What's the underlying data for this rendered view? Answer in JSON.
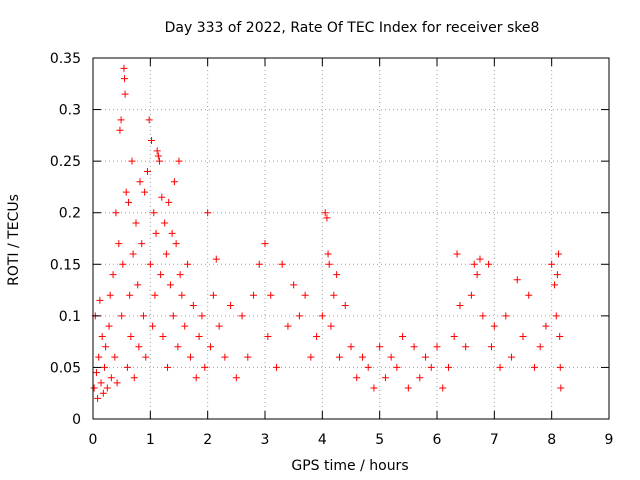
{
  "chart_data": {
    "type": "scatter",
    "title": "Day 333 of 2022, Rate Of TEC Index for receiver ske8",
    "xlabel": "GPS time / hours",
    "ylabel": "ROTI / TECUs",
    "xlim": [
      0,
      9
    ],
    "ylim": [
      0,
      0.35
    ],
    "xticks": [
      0,
      1,
      2,
      3,
      4,
      5,
      6,
      7,
      8,
      9
    ],
    "yticks": [
      0,
      0.05,
      0.1,
      0.15,
      0.2,
      0.25,
      0.3,
      0.35
    ],
    "xtick_labels": [
      "0",
      "1",
      "2",
      "3",
      "4",
      "5",
      "6",
      "7",
      "8",
      "9"
    ],
    "ytick_labels": [
      "0",
      "0.05",
      "0.1",
      "0.15",
      "0.2",
      "0.25",
      "0.3",
      "0.35"
    ],
    "grid": true,
    "marker": "+",
    "color": "#ff0000",
    "series": [
      {
        "name": "ROTI",
        "points": [
          [
            0.02,
            0.03
          ],
          [
            0.04,
            0.1
          ],
          [
            0.06,
            0.045
          ],
          [
            0.08,
            0.02
          ],
          [
            0.1,
            0.06
          ],
          [
            0.12,
            0.115
          ],
          [
            0.14,
            0.035
          ],
          [
            0.16,
            0.08
          ],
          [
            0.18,
            0.025
          ],
          [
            0.2,
            0.05
          ],
          [
            0.22,
            0.07
          ],
          [
            0.25,
            0.03
          ],
          [
            0.28,
            0.09
          ],
          [
            0.3,
            0.12
          ],
          [
            0.32,
            0.04
          ],
          [
            0.35,
            0.14
          ],
          [
            0.38,
            0.06
          ],
          [
            0.4,
            0.2
          ],
          [
            0.42,
            0.035
          ],
          [
            0.45,
            0.17
          ],
          [
            0.47,
            0.28
          ],
          [
            0.49,
            0.29
          ],
          [
            0.5,
            0.1
          ],
          [
            0.52,
            0.15
          ],
          [
            0.54,
            0.34
          ],
          [
            0.55,
            0.33
          ],
          [
            0.56,
            0.315
          ],
          [
            0.58,
            0.22
          ],
          [
            0.6,
            0.05
          ],
          [
            0.62,
            0.21
          ],
          [
            0.64,
            0.12
          ],
          [
            0.66,
            0.08
          ],
          [
            0.68,
            0.25
          ],
          [
            0.7,
            0.16
          ],
          [
            0.72,
            0.04
          ],
          [
            0.75,
            0.19
          ],
          [
            0.78,
            0.13
          ],
          [
            0.8,
            0.07
          ],
          [
            0.82,
            0.23
          ],
          [
            0.85,
            0.17
          ],
          [
            0.88,
            0.1
          ],
          [
            0.9,
            0.22
          ],
          [
            0.92,
            0.06
          ],
          [
            0.95,
            0.24
          ],
          [
            0.98,
            0.29
          ],
          [
            1.0,
            0.15
          ],
          [
            1.02,
            0.27
          ],
          [
            1.04,
            0.09
          ],
          [
            1.06,
            0.2
          ],
          [
            1.08,
            0.12
          ],
          [
            1.1,
            0.18
          ],
          [
            1.12,
            0.26
          ],
          [
            1.14,
            0.255
          ],
          [
            1.16,
            0.25
          ],
          [
            1.18,
            0.14
          ],
          [
            1.2,
            0.215
          ],
          [
            1.22,
            0.08
          ],
          [
            1.25,
            0.19
          ],
          [
            1.28,
            0.16
          ],
          [
            1.3,
            0.05
          ],
          [
            1.32,
            0.21
          ],
          [
            1.35,
            0.13
          ],
          [
            1.38,
            0.18
          ],
          [
            1.4,
            0.1
          ],
          [
            1.42,
            0.23
          ],
          [
            1.45,
            0.17
          ],
          [
            1.48,
            0.07
          ],
          [
            1.5,
            0.25
          ],
          [
            1.52,
            0.14
          ],
          [
            1.55,
            0.12
          ],
          [
            1.6,
            0.09
          ],
          [
            1.65,
            0.15
          ],
          [
            1.7,
            0.06
          ],
          [
            1.75,
            0.11
          ],
          [
            1.8,
            0.04
          ],
          [
            1.85,
            0.08
          ],
          [
            1.9,
            0.1
          ],
          [
            1.95,
            0.05
          ],
          [
            2.0,
            0.2
          ],
          [
            2.05,
            0.07
          ],
          [
            2.1,
            0.12
          ],
          [
            2.15,
            0.155
          ],
          [
            2.2,
            0.09
          ],
          [
            2.3,
            0.06
          ],
          [
            2.4,
            0.11
          ],
          [
            2.5,
            0.04
          ],
          [
            2.6,
            0.1
          ],
          [
            2.7,
            0.06
          ],
          [
            2.8,
            0.12
          ],
          [
            2.9,
            0.15
          ],
          [
            3.0,
            0.17
          ],
          [
            3.05,
            0.08
          ],
          [
            3.1,
            0.12
          ],
          [
            3.2,
            0.05
          ],
          [
            3.3,
            0.15
          ],
          [
            3.4,
            0.09
          ],
          [
            3.5,
            0.13
          ],
          [
            3.6,
            0.1
          ],
          [
            3.7,
            0.12
          ],
          [
            3.8,
            0.06
          ],
          [
            3.9,
            0.08
          ],
          [
            4.0,
            0.1
          ],
          [
            4.05,
            0.2
          ],
          [
            4.08,
            0.195
          ],
          [
            4.1,
            0.16
          ],
          [
            4.12,
            0.15
          ],
          [
            4.15,
            0.09
          ],
          [
            4.2,
            0.12
          ],
          [
            4.25,
            0.14
          ],
          [
            4.3,
            0.06
          ],
          [
            4.4,
            0.11
          ],
          [
            4.5,
            0.07
          ],
          [
            4.6,
            0.04
          ],
          [
            4.7,
            0.06
          ],
          [
            4.8,
            0.05
          ],
          [
            4.9,
            0.03
          ],
          [
            5.0,
            0.07
          ],
          [
            5.1,
            0.04
          ],
          [
            5.2,
            0.06
          ],
          [
            5.3,
            0.05
          ],
          [
            5.4,
            0.08
          ],
          [
            5.5,
            0.03
          ],
          [
            5.6,
            0.07
          ],
          [
            5.7,
            0.04
          ],
          [
            5.8,
            0.06
          ],
          [
            5.9,
            0.05
          ],
          [
            6.0,
            0.07
          ],
          [
            6.1,
            0.03
          ],
          [
            6.2,
            0.05
          ],
          [
            6.3,
            0.08
          ],
          [
            6.35,
            0.16
          ],
          [
            6.4,
            0.11
          ],
          [
            6.5,
            0.07
          ],
          [
            6.6,
            0.12
          ],
          [
            6.65,
            0.15
          ],
          [
            6.7,
            0.14
          ],
          [
            6.75,
            0.155
          ],
          [
            6.8,
            0.1
          ],
          [
            6.9,
            0.15
          ],
          [
            6.95,
            0.07
          ],
          [
            7.0,
            0.09
          ],
          [
            7.1,
            0.05
          ],
          [
            7.2,
            0.1
          ],
          [
            7.3,
            0.06
          ],
          [
            7.4,
            0.135
          ],
          [
            7.5,
            0.08
          ],
          [
            7.6,
            0.12
          ],
          [
            7.7,
            0.05
          ],
          [
            7.8,
            0.07
          ],
          [
            7.9,
            0.09
          ],
          [
            8.0,
            0.15
          ],
          [
            8.05,
            0.13
          ],
          [
            8.08,
            0.1
          ],
          [
            8.1,
            0.14
          ],
          [
            8.12,
            0.16
          ],
          [
            8.14,
            0.08
          ],
          [
            8.15,
            0.05
          ],
          [
            8.16,
            0.03
          ]
        ]
      }
    ]
  }
}
